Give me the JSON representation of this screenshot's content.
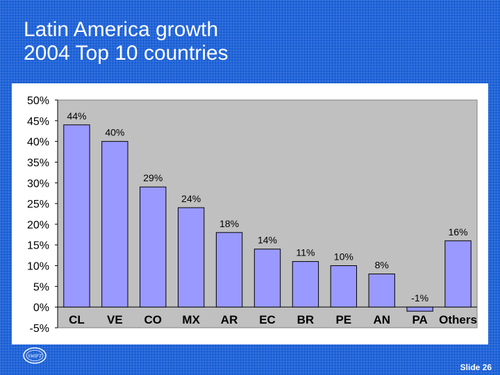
{
  "slide": {
    "title_line1": "Latin America growth",
    "title_line2": "2004 Top 10 countries",
    "slide_number": "Slide 26",
    "logo_text": "SWIFT"
  },
  "colors": {
    "background": "#1a5fd6",
    "plot_area": "#c0c0c0",
    "bar_fill": "#9999ff",
    "bar_stroke": "#000000",
    "panel": "#ffffff"
  },
  "chart_data": {
    "type": "bar",
    "title": "",
    "xlabel": "",
    "ylabel": "",
    "categories": [
      "CL",
      "VE",
      "CO",
      "MX",
      "AR",
      "EC",
      "BR",
      "PE",
      "AN",
      "PA",
      "Others"
    ],
    "values": [
      44,
      40,
      29,
      24,
      18,
      14,
      11,
      10,
      8,
      -1,
      16
    ],
    "data_labels": [
      "44%",
      "40%",
      "29%",
      "24%",
      "18%",
      "14%",
      "11%",
      "10%",
      "8%",
      "-1%",
      "16%"
    ],
    "ylim": [
      -5,
      50
    ],
    "yticks": [
      50,
      45,
      40,
      35,
      30,
      25,
      20,
      15,
      10,
      5,
      0,
      -5
    ],
    "ytick_labels": [
      "50%",
      "45%",
      "40%",
      "35%",
      "30%",
      "25%",
      "20%",
      "15%",
      "10%",
      "5%",
      "0%",
      "-5%"
    ],
    "grid": false,
    "legend": "none"
  }
}
